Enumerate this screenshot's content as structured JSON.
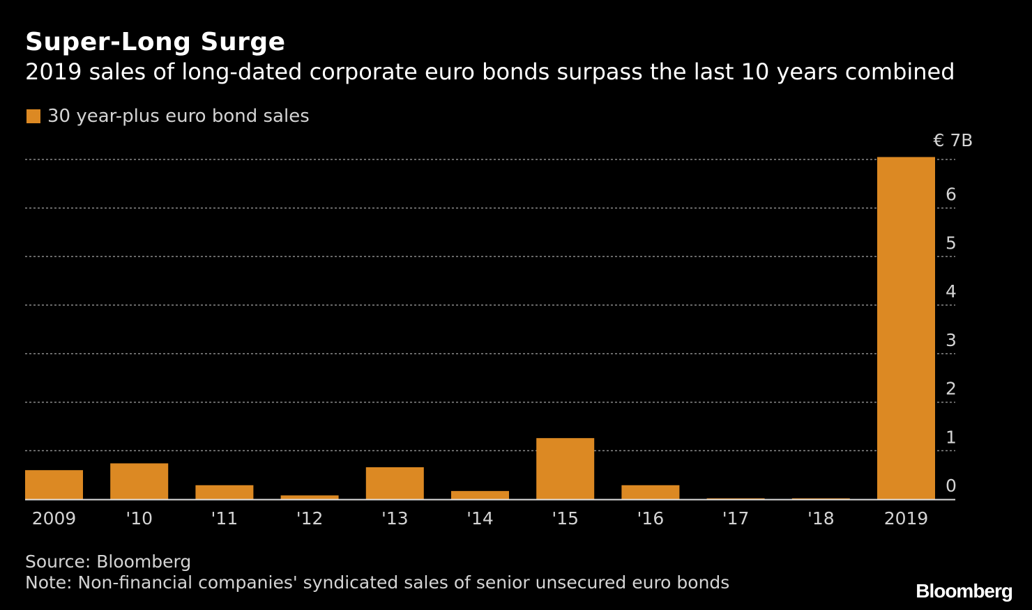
{
  "title": "Super-Long Surge",
  "subtitle": "2019 sales of long-dated corporate euro bonds surpass the last 10 years combined",
  "colors": {
    "bar": "#dc8923",
    "background": "#000000",
    "grid": "#8a8a8a",
    "text": "#ffffff",
    "muted": "#d4d4d4"
  },
  "chart_data": {
    "type": "bar",
    "title": "Super-Long Surge",
    "subtitle": "2019 sales of long-dated corporate euro bonds surpass the last 10 years combined",
    "legend": [
      "30 year-plus euro bond sales"
    ],
    "legend_position": "top-left",
    "xlabel": "",
    "ylabel": "",
    "y_axis_position": "right",
    "y_unit_label": "€ 7B",
    "ylim": [
      0,
      7
    ],
    "yticks": [
      0,
      1,
      2,
      3,
      4,
      5,
      6
    ],
    "grid": true,
    "categories": [
      "2009",
      "'10",
      "'11",
      "'12",
      "'13",
      "'14",
      "'15",
      "'16",
      "'17",
      "'18",
      "2019"
    ],
    "series": [
      {
        "name": "30 year-plus euro bond sales",
        "values": [
          0.6,
          0.74,
          0.29,
          0.08,
          0.66,
          0.17,
          1.26,
          0.29,
          0.02,
          0.02,
          7.05
        ]
      }
    ]
  },
  "footer": {
    "source": "Source: Bloomberg",
    "note": "Note: Non-financial companies' syndicated sales of senior unsecured euro bonds",
    "brand": "Bloomberg"
  }
}
